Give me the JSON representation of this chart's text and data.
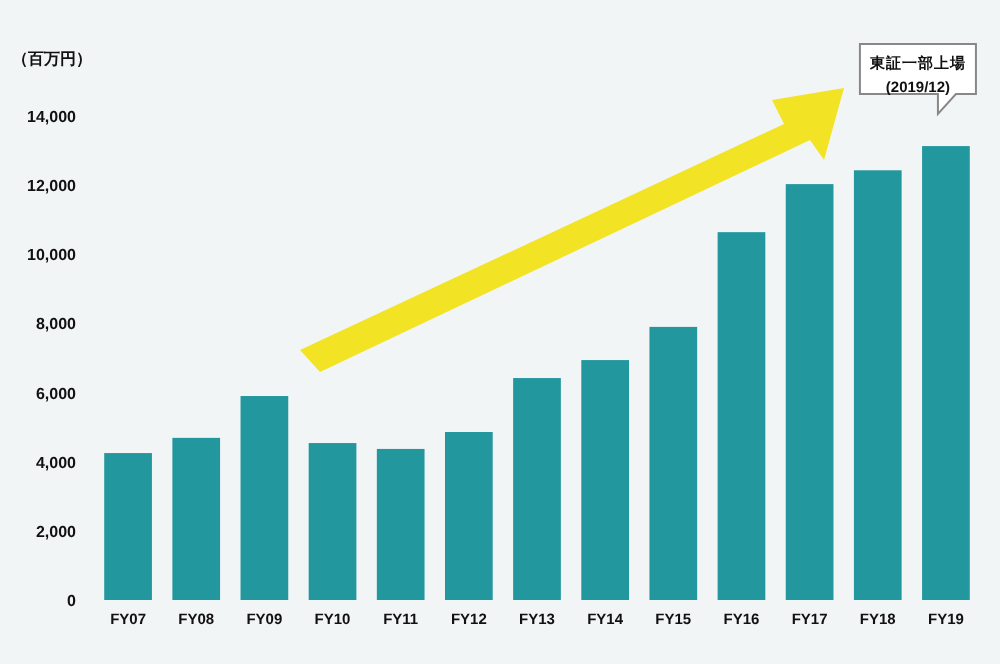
{
  "chart_data": {
    "type": "bar",
    "ylabel": "（百万円）",
    "categories": [
      "FY07",
      "FY08",
      "FY09",
      "FY10",
      "FY11",
      "FY12",
      "FY13",
      "FY14",
      "FY15",
      "FY16",
      "FY17",
      "FY18",
      "FY19"
    ],
    "values": [
      4250,
      4690,
      5900,
      4540,
      4370,
      4860,
      6420,
      6940,
      7900,
      10640,
      12030,
      12430,
      13130
    ],
    "color": "#23979e",
    "ylim": [
      0,
      14000
    ],
    "yticks": [
      {
        "value": 0,
        "label": "0"
      },
      {
        "value": 2000,
        "label": "2,000"
      },
      {
        "value": 4000,
        "label": "4,000"
      },
      {
        "value": 6000,
        "label": "6,000"
      },
      {
        "value": 8000,
        "label": "8,000"
      },
      {
        "value": 10000,
        "label": "10,000"
      },
      {
        "value": 12000,
        "label": "12,000"
      },
      {
        "value": 14000,
        "label": "14,000"
      }
    ],
    "grid": false,
    "annotations": [
      "東証一部上場\n(2019/12)"
    ]
  }
}
